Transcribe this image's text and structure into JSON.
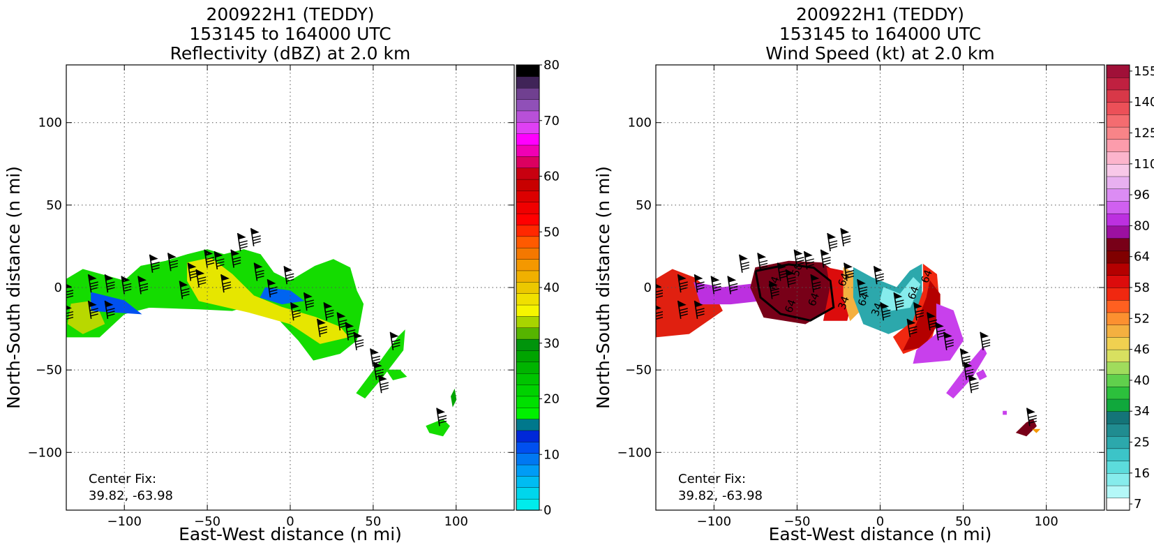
{
  "chart_data": [
    {
      "type": "heatmap",
      "field": "reflectivity",
      "title": [
        "200922H1 (TEDDY)",
        "153145 to 164000 UTC",
        "Reflectivity (dBZ) at 2.0 km"
      ],
      "xlabel": "East-West distance (n mi)",
      "ylabel": "North-South distance (n mi)",
      "xlim": [
        -135,
        135
      ],
      "ylim": [
        -135,
        135
      ],
      "xticks": [
        -100,
        -50,
        0,
        50,
        100
      ],
      "yticks": [
        -100,
        -50,
        0,
        50,
        100
      ],
      "xtick_labels": [
        "−100",
        "−50",
        "0",
        "50",
        "100"
      ],
      "ytick_labels": [
        "−100",
        "−50",
        "0",
        "50",
        "100"
      ],
      "grid": true,
      "annotation": [
        "Center Fix:",
        "39.82, -63.98"
      ],
      "colorbar": {
        "levels": [
          0,
          80
        ],
        "tick_labels": [
          "0",
          "10",
          "20",
          "30",
          "40",
          "50",
          "60",
          "70",
          "80"
        ],
        "colors": [
          "#00ecec",
          "#00d6ec",
          "#00bcf2",
          "#009cf6",
          "#0078f2",
          "#0050f0",
          "#0028d8",
          "#00788c",
          "#00f000",
          "#00e000",
          "#00d200",
          "#00c400",
          "#00b400",
          "#00a400",
          "#00940c",
          "#56b400",
          "#a8d400",
          "#f6f600",
          "#f0e000",
          "#ecc800",
          "#f0b000",
          "#f49800",
          "#f47800",
          "#ff5a00",
          "#ff2800",
          "#ff0000",
          "#f00000",
          "#dc0000",
          "#c80000",
          "#c80010",
          "#dc0060",
          "#f000b4",
          "#ff00ff",
          "#e040f4",
          "#b850d8",
          "#9050b8",
          "#704090",
          "#402458",
          "#000000"
        ]
      },
      "echo_regions": [
        {
          "name": "main-band",
          "points": [
            [
              -135,
              5
            ],
            [
              -125,
              11
            ],
            [
              -100,
              4
            ],
            [
              -90,
              13
            ],
            [
              -75,
              16
            ],
            [
              -62,
              20
            ],
            [
              -50,
              23
            ],
            [
              -40,
              20
            ],
            [
              -28,
              23
            ],
            [
              -18,
              20
            ],
            [
              -10,
              9
            ],
            [
              0,
              4
            ],
            [
              15,
              13
            ],
            [
              26,
              17
            ],
            [
              36,
              12
            ],
            [
              40,
              -2
            ],
            [
              44,
              -10
            ],
            [
              40,
              -32
            ],
            [
              30,
              -40
            ],
            [
              14,
              -44
            ],
            [
              5,
              -32
            ],
            [
              -10,
              -16
            ],
            [
              -22,
              -10
            ],
            [
              -35,
              -14
            ],
            [
              -55,
              -13
            ],
            [
              -85,
              -12
            ],
            [
              -100,
              -16
            ],
            [
              -115,
              -30
            ],
            [
              -135,
              -30
            ]
          ],
          "color": "#14dc00"
        },
        {
          "name": "band-core-1",
          "points": [
            [
              -62,
              15
            ],
            [
              -48,
              18
            ],
            [
              -35,
              8
            ],
            [
              -22,
              -5
            ],
            [
              -5,
              -12
            ],
            [
              15,
              -18
            ],
            [
              30,
              -24
            ],
            [
              35,
              -30
            ],
            [
              18,
              -34
            ],
            [
              0,
              -22
            ],
            [
              -25,
              -15
            ],
            [
              -55,
              -8
            ],
            [
              -62,
              4
            ]
          ],
          "color": "#e6e600"
        },
        {
          "name": "band-core-2",
          "points": [
            [
              -132,
              -10
            ],
            [
              -118,
              -8
            ],
            [
              -112,
              -22
            ],
            [
              -125,
              -28
            ],
            [
              -134,
              -22
            ]
          ],
          "color": "#b8d800"
        },
        {
          "name": "blue-fringe",
          "points": [
            [
              -120,
              -3
            ],
            [
              -100,
              -8
            ],
            [
              -90,
              -16
            ],
            [
              -120,
              -14
            ]
          ],
          "color": "#0050f0"
        },
        {
          "name": "blue-fringe-2",
          "points": [
            [
              -15,
              0
            ],
            [
              0,
              -2
            ],
            [
              8,
              -8
            ],
            [
              -5,
              -10
            ],
            [
              -18,
              -6
            ]
          ],
          "color": "#0064f0"
        },
        {
          "name": "outer-band",
          "points": [
            [
              40,
              -64
            ],
            [
              52,
              -48
            ],
            [
              65,
              -30
            ],
            [
              69,
              -26
            ],
            [
              68,
              -38
            ],
            [
              55,
              -55
            ],
            [
              45,
              -67
            ]
          ],
          "color": "#14dc00"
        },
        {
          "name": "outer-cell-1",
          "points": [
            [
              58,
              -50
            ],
            [
              66,
              -50
            ],
            [
              70,
              -54
            ],
            [
              62,
              -56
            ]
          ],
          "color": "#14dc00"
        },
        {
          "name": "outer-cell-2",
          "points": [
            [
              82,
              -84
            ],
            [
              92,
              -80
            ],
            [
              96,
              -84
            ],
            [
              92,
              -90
            ],
            [
              84,
              -88
            ]
          ],
          "color": "#14dc00"
        },
        {
          "name": "outer-cell-3",
          "points": [
            [
              97,
              -66
            ],
            [
              99,
              -62
            ],
            [
              100,
              -68
            ],
            [
              98,
              -72
            ]
          ],
          "color": "#00a400"
        }
      ]
    },
    {
      "type": "heatmap",
      "field": "wind-speed",
      "title": [
        "200922H1 (TEDDY)",
        "153145 to 164000 UTC",
        "Wind Speed (kt) at 2.0 km"
      ],
      "xlabel": "East-West distance (n mi)",
      "ylabel": "North-South distance (n mi)",
      "xlim": [
        -135,
        135
      ],
      "ylim": [
        -135,
        135
      ],
      "xticks": [
        -100,
        -50,
        0,
        50,
        100
      ],
      "yticks": [
        -100,
        -50,
        0,
        50,
        100
      ],
      "xtick_labels": [
        "−100",
        "−50",
        "0",
        "50",
        "100"
      ],
      "ytick_labels": [
        "−100",
        "−50",
        "0",
        "50",
        "100"
      ],
      "grid": true,
      "annotation": [
        "Center Fix:",
        "39.82, -63.98"
      ],
      "contour_labels": [
        "64",
        "64",
        "64",
        "50",
        "64",
        "64",
        "34",
        "34",
        "64",
        "64"
      ],
      "colorbar": {
        "levels": [
          7,
          160
        ],
        "tick_labels": [
          "7",
          "16",
          "25",
          "34",
          "40",
          "46",
          "52",
          "58",
          "64",
          "80",
          "96",
          "110",
          "125",
          "140",
          "155"
        ],
        "colors": [
          "#ffffff",
          "#b4f8f8",
          "#86ecec",
          "#5cdcdc",
          "#3cc4c8",
          "#2ca8ac",
          "#208c90",
          "#147478",
          "#10a83c",
          "#2cc03c",
          "#60d04c",
          "#a0dc5c",
          "#d8e060",
          "#f0d050",
          "#f4b040",
          "#fc9030",
          "#ff6020",
          "#f02810",
          "#dc0c0c",
          "#b40000",
          "#800000",
          "#780018",
          "#9c10a0",
          "#bc30e0",
          "#d060f0",
          "#dc8cf4",
          "#e8b0f0",
          "#f8c8e8",
          "#fcb4cc",
          "#fc9cac",
          "#f88488",
          "#f46c70",
          "#ec5058",
          "#d83848",
          "#c02040",
          "#a01038"
        ]
      },
      "speed_regions": [
        {
          "name": "west-red",
          "points": [
            [
              -135,
              5
            ],
            [
              -125,
              11
            ],
            [
              -112,
              6
            ],
            [
              -100,
              -4
            ],
            [
              -95,
              -14
            ],
            [
              -115,
              -28
            ],
            [
              -135,
              -30
            ]
          ],
          "color": "#e02010"
        },
        {
          "name": "west-purple",
          "points": [
            [
              -112,
              3
            ],
            [
              -95,
              0
            ],
            [
              -78,
              2
            ],
            [
              -72,
              -8
            ],
            [
              -90,
              -10
            ],
            [
              -108,
              -10
            ]
          ],
          "color": "#bc30e0"
        },
        {
          "name": "inner-maroon",
          "points": [
            [
              -75,
              12
            ],
            [
              -55,
              16
            ],
            [
              -35,
              15
            ],
            [
              -25,
              8
            ],
            [
              -28,
              -12
            ],
            [
              -45,
              -22
            ],
            [
              -70,
              -18
            ],
            [
              -78,
              0
            ]
          ],
          "color": "#780018"
        },
        {
          "name": "inner-red-edge",
          "points": [
            [
              -32,
              12
            ],
            [
              -22,
              10
            ],
            [
              -16,
              -4
            ],
            [
              -20,
              -20
            ],
            [
              -34,
              -20
            ],
            [
              -30,
              0
            ]
          ],
          "color": "#dc0c0c"
        },
        {
          "name": "orange-strip",
          "points": [
            [
              -22,
              12
            ],
            [
              -14,
              8
            ],
            [
              -8,
              -10
            ],
            [
              -18,
              -20
            ],
            [
              -22,
              -6
            ]
          ],
          "color": "#f4b040"
        },
        {
          "name": "teal-center",
          "points": [
            [
              -16,
              12
            ],
            [
              -5,
              6
            ],
            [
              10,
              0
            ],
            [
              18,
              10
            ],
            [
              25,
              14
            ],
            [
              25,
              -5
            ],
            [
              20,
              -22
            ],
            [
              5,
              -28
            ],
            [
              -10,
              -22
            ],
            [
              -16,
              -6
            ]
          ],
          "color": "#2ca8ac"
        },
        {
          "name": "light-cyan",
          "points": [
            [
              2,
              0
            ],
            [
              12,
              -4
            ],
            [
              20,
              6
            ],
            [
              24,
              2
            ],
            [
              18,
              -12
            ],
            [
              6,
              -14
            ],
            [
              0,
              -8
            ]
          ],
          "color": "#86ecec"
        },
        {
          "name": "east-gradient",
          "points": [
            [
              26,
              14
            ],
            [
              34,
              8
            ],
            [
              36,
              -14
            ],
            [
              30,
              -34
            ],
            [
              14,
              -40
            ],
            [
              8,
              -30
            ],
            [
              20,
              -20
            ],
            [
              26,
              -2
            ]
          ],
          "color": "#f02810"
        },
        {
          "name": "east-maroon",
          "points": [
            [
              30,
              4
            ],
            [
              36,
              -4
            ],
            [
              36,
              -20
            ],
            [
              26,
              -36
            ],
            [
              14,
              -38
            ],
            [
              22,
              -22
            ],
            [
              28,
              -6
            ]
          ],
          "color": "#b40000"
        },
        {
          "name": "east-purple",
          "points": [
            [
              34,
              -10
            ],
            [
              44,
              -14
            ],
            [
              50,
              -32
            ],
            [
              42,
              -44
            ],
            [
              20,
              -46
            ],
            [
              22,
              -38
            ],
            [
              34,
              -28
            ]
          ],
          "color": "#c840ec"
        },
        {
          "name": "outer-band",
          "points": [
            [
              40,
              -64
            ],
            [
              52,
              -48
            ],
            [
              62,
              -36
            ],
            [
              64,
              -40
            ],
            [
              55,
              -55
            ],
            [
              44,
              -67
            ]
          ],
          "color": "#c840ec"
        },
        {
          "name": "outer-cell-1",
          "points": [
            [
              58,
              -52
            ],
            [
              62,
              -50
            ],
            [
              64,
              -54
            ],
            [
              60,
              -56
            ]
          ],
          "color": "#c840ec"
        },
        {
          "name": "outer-cell-2",
          "points": [
            [
              82,
              -88
            ],
            [
              88,
              -82
            ],
            [
              92,
              -80
            ],
            [
              94,
              -84
            ],
            [
              88,
              -90
            ]
          ],
          "color": "#780018"
        },
        {
          "name": "outer-cell-3",
          "points": [
            [
              92,
              -86
            ],
            [
              96,
              -86
            ],
            [
              94,
              -88
            ]
          ],
          "color": "#f49800"
        },
        {
          "name": "outer-cell-4",
          "points": [
            [
              74,
              -75
            ],
            [
              76,
              -75
            ],
            [
              76,
              -77
            ],
            [
              74,
              -77
            ]
          ],
          "color": "#c840ec"
        }
      ],
      "contour_64_path": [
        [
          -75,
          10
        ],
        [
          -55,
          14
        ],
        [
          -40,
          12
        ],
        [
          -30,
          4
        ],
        [
          -28,
          -12
        ],
        [
          -42,
          -20
        ],
        [
          -60,
          -16
        ],
        [
          -72,
          -6
        ],
        [
          -75,
          10
        ]
      ]
    }
  ],
  "wind_barbs": [
    [
      -135,
      -8
    ],
    [
      -135,
      -21
    ],
    [
      -120,
      -3
    ],
    [
      -120,
      -19
    ],
    [
      -110,
      -3
    ],
    [
      -110,
      -19
    ],
    [
      -100,
      -4
    ],
    [
      -90,
      -4
    ],
    [
      -83,
      9
    ],
    [
      -72,
      10
    ],
    [
      -65,
      -7
    ],
    [
      -60,
      4
    ],
    [
      -55,
      0
    ],
    [
      -50,
      12
    ],
    [
      -44,
      11
    ],
    [
      -40,
      -3
    ],
    [
      -34,
      12
    ],
    [
      -30,
      22
    ],
    [
      -22,
      25
    ],
    [
      -20,
      4
    ],
    [
      -12,
      -6
    ],
    [
      -2,
      2
    ],
    [
      2,
      -20
    ],
    [
      10,
      -14
    ],
    [
      18,
      -30
    ],
    [
      22,
      -20
    ],
    [
      30,
      -26
    ],
    [
      35,
      -32
    ],
    [
      40,
      -38
    ],
    [
      50,
      -48
    ],
    [
      52,
      -56
    ],
    [
      55,
      -64
    ],
    [
      62,
      -38
    ],
    [
      90,
      -84
    ]
  ]
}
